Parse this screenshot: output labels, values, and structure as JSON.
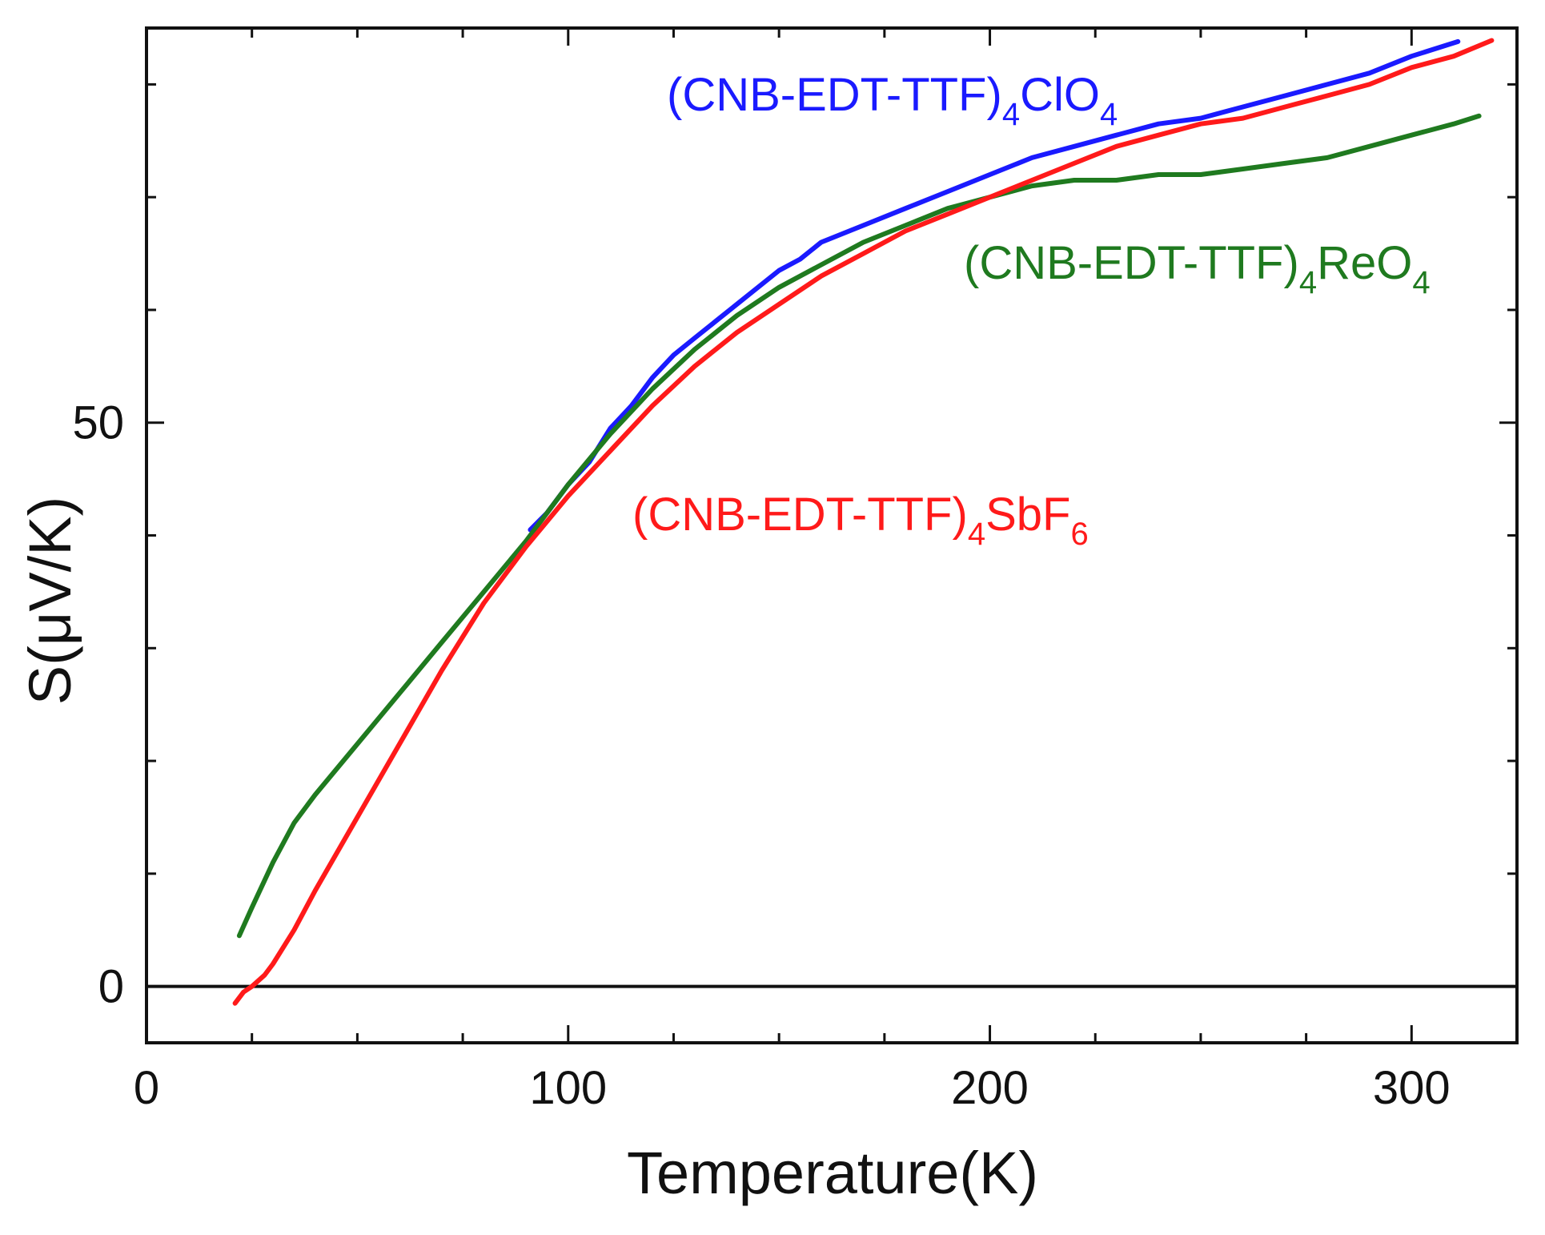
{
  "chart_data": {
    "type": "line",
    "title": "",
    "xlabel": "Temperature(K)",
    "ylabel": "S(μV/K)",
    "xlim": [
      0,
      325
    ],
    "ylim": [
      -5,
      85
    ],
    "x_ticks": [
      0,
      100,
      200,
      300
    ],
    "x_tick_labels": [
      "0",
      "100",
      "200",
      "300"
    ],
    "y_ticks": [
      0,
      50
    ],
    "y_tick_labels": [
      "0",
      "50"
    ],
    "zero_line": true,
    "grid": false,
    "series": [
      {
        "name": "(CNB-EDT-TTF)4ClO4",
        "label": {
          "prefix": "(CNB-EDT-TTF)",
          "sub1": "4",
          "main": "ClO",
          "sub2": "4"
        },
        "color": "#1a1aff",
        "points": [
          [
            91,
            40.5
          ],
          [
            95,
            42
          ],
          [
            100,
            44.5
          ],
          [
            105,
            46.5
          ],
          [
            110,
            49.5
          ],
          [
            115,
            51.5
          ],
          [
            120,
            54
          ],
          [
            125,
            56
          ],
          [
            130,
            57.5
          ],
          [
            135,
            59
          ],
          [
            140,
            60.5
          ],
          [
            145,
            62
          ],
          [
            150,
            63.5
          ],
          [
            155,
            64.5
          ],
          [
            160,
            66
          ],
          [
            170,
            67.5
          ],
          [
            180,
            69
          ],
          [
            190,
            70.5
          ],
          [
            200,
            72
          ],
          [
            210,
            73.5
          ],
          [
            220,
            74.5
          ],
          [
            230,
            75.5
          ],
          [
            240,
            76.5
          ],
          [
            250,
            77
          ],
          [
            260,
            78
          ],
          [
            270,
            79
          ],
          [
            280,
            80
          ],
          [
            290,
            81
          ],
          [
            300,
            82.5
          ],
          [
            311,
            83.8
          ]
        ]
      },
      {
        "name": "(CNB-EDT-TTF)4ReO4",
        "label": {
          "prefix": "(CNB-EDT-TTF)",
          "sub1": "4",
          "main": "ReO",
          "sub2": "4"
        },
        "color": "#1f7a1f",
        "points": [
          [
            22,
            4.5
          ],
          [
            25,
            7
          ],
          [
            30,
            11
          ],
          [
            35,
            14.5
          ],
          [
            40,
            17
          ],
          [
            50,
            21.5
          ],
          [
            60,
            26
          ],
          [
            70,
            30.5
          ],
          [
            80,
            35
          ],
          [
            90,
            39.5
          ],
          [
            100,
            44.5
          ],
          [
            110,
            49
          ],
          [
            120,
            53
          ],
          [
            130,
            56.5
          ],
          [
            140,
            59.5
          ],
          [
            150,
            62
          ],
          [
            160,
            64
          ],
          [
            170,
            66
          ],
          [
            180,
            67.5
          ],
          [
            190,
            69
          ],
          [
            200,
            70
          ],
          [
            210,
            71
          ],
          [
            220,
            71.5
          ],
          [
            230,
            71.5
          ],
          [
            240,
            72
          ],
          [
            250,
            72
          ],
          [
            260,
            72.5
          ],
          [
            270,
            73
          ],
          [
            280,
            73.5
          ],
          [
            290,
            74.5
          ],
          [
            300,
            75.5
          ],
          [
            310,
            76.5
          ],
          [
            316,
            77.2
          ]
        ]
      },
      {
        "name": "(CNB-EDT-TTF)4SbF6",
        "label": {
          "prefix": "(CNB-EDT-TTF)",
          "sub1": "4",
          "main": "SbF",
          "sub2": "6"
        },
        "color": "#ff1a1a",
        "points": [
          [
            21,
            -1.5
          ],
          [
            23,
            -0.5
          ],
          [
            25,
            0
          ],
          [
            28,
            1
          ],
          [
            30,
            2
          ],
          [
            35,
            5
          ],
          [
            40,
            8.5
          ],
          [
            50,
            15
          ],
          [
            60,
            21.5
          ],
          [
            70,
            28
          ],
          [
            80,
            34
          ],
          [
            90,
            39
          ],
          [
            100,
            43.5
          ],
          [
            110,
            47.5
          ],
          [
            120,
            51.5
          ],
          [
            130,
            55
          ],
          [
            140,
            58
          ],
          [
            150,
            60.5
          ],
          [
            160,
            63
          ],
          [
            170,
            65
          ],
          [
            180,
            67
          ],
          [
            190,
            68.5
          ],
          [
            200,
            70
          ],
          [
            210,
            71.5
          ],
          [
            220,
            73
          ],
          [
            230,
            74.5
          ],
          [
            240,
            75.5
          ],
          [
            250,
            76.5
          ],
          [
            260,
            77
          ],
          [
            270,
            78
          ],
          [
            280,
            79
          ],
          [
            290,
            80
          ],
          [
            300,
            81.5
          ],
          [
            310,
            82.5
          ],
          [
            319,
            83.9
          ]
        ]
      }
    ]
  }
}
